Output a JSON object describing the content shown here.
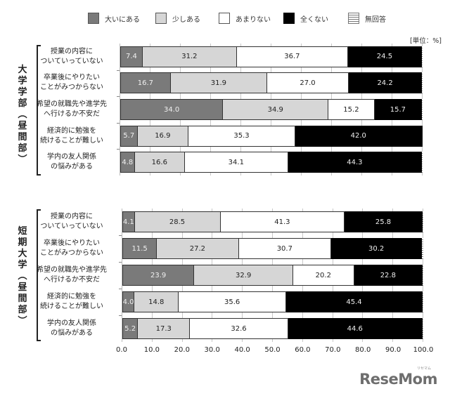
{
  "legend": [
    {
      "label": "大いにある",
      "color": "#7a7a7a"
    },
    {
      "label": "少しある",
      "color": "#d6d6d6"
    },
    {
      "label": "あまりない",
      "color": "#ffffff"
    },
    {
      "label": "全くない",
      "color": "#000000"
    },
    {
      "label": "無回答",
      "color": "striped"
    }
  ],
  "unit_label": "[単位：%]",
  "x_ticks": [
    "0.0",
    "10.0",
    "20.0",
    "30.0",
    "40.0",
    "50.0",
    "60.0",
    "70.0",
    "80.0",
    "90.0",
    "100.0"
  ],
  "logo": {
    "text": "ReseMom",
    "sub": "リセマム"
  },
  "chart_data": [
    {
      "type": "bar",
      "orientation": "horizontal",
      "stacked": true,
      "title": "大学学部（昼間部）",
      "group_label_chars": [
        "大",
        "学",
        "学",
        "部",
        "︵",
        "昼",
        "間",
        "部",
        "︶"
      ],
      "categories": [
        "授業の内容に\nついていっていない",
        "卒業後にやりたい\nことがみつからない",
        "希望の就職先や進学先\nへ行けるか不安だ",
        "経済的に勉強を\n続けることが難しい",
        "学内の友人関係\nの悩みがある"
      ],
      "series": [
        {
          "name": "大いにある",
          "values": [
            7.4,
            16.7,
            34.0,
            5.7,
            4.8
          ]
        },
        {
          "name": "少しある",
          "values": [
            31.2,
            31.9,
            34.9,
            16.9,
            16.6
          ]
        },
        {
          "name": "あまりない",
          "values": [
            36.7,
            27.0,
            15.2,
            35.3,
            34.1
          ]
        },
        {
          "name": "全くない",
          "values": [
            24.5,
            24.2,
            15.7,
            42.0,
            44.3
          ]
        },
        {
          "name": "無回答",
          "values": [
            0.2,
            0.2,
            0.2,
            0.1,
            0.2
          ]
        }
      ],
      "xlabel": "",
      "ylabel": "",
      "xlim": [
        0,
        100
      ],
      "grid": true,
      "legend_position": "top",
      "unit": "%"
    },
    {
      "type": "bar",
      "orientation": "horizontal",
      "stacked": true,
      "title": "短期大学（昼間部）",
      "group_label_chars": [
        "短",
        "期",
        "大",
        "学",
        "︵",
        "昼",
        "間",
        "部",
        "︶"
      ],
      "categories": [
        "授業の内容に\nついていっていない",
        "卒業後にやりたい\nことがみつからない",
        "希望の就職先や進学先\nへ行けるか不安だ",
        "経済的に勉強を\n続けることが難しい",
        "学内の友人関係\nの悩みがある"
      ],
      "series": [
        {
          "name": "大いにある",
          "values": [
            4.1,
            11.5,
            23.9,
            4.0,
            5.2
          ]
        },
        {
          "name": "少しある",
          "values": [
            28.5,
            27.2,
            32.9,
            14.8,
            17.3
          ]
        },
        {
          "name": "あまりない",
          "values": [
            41.3,
            30.7,
            20.2,
            35.6,
            32.6
          ]
        },
        {
          "name": "全くない",
          "values": [
            25.8,
            30.2,
            22.8,
            45.4,
            44.6
          ]
        },
        {
          "name": "無回答",
          "values": [
            0.3,
            0.4,
            0.2,
            0.2,
            0.3
          ]
        }
      ],
      "xlabel": "",
      "ylabel": "",
      "xlim": [
        0,
        100
      ],
      "grid": true,
      "legend_position": "top",
      "unit": "%"
    }
  ]
}
